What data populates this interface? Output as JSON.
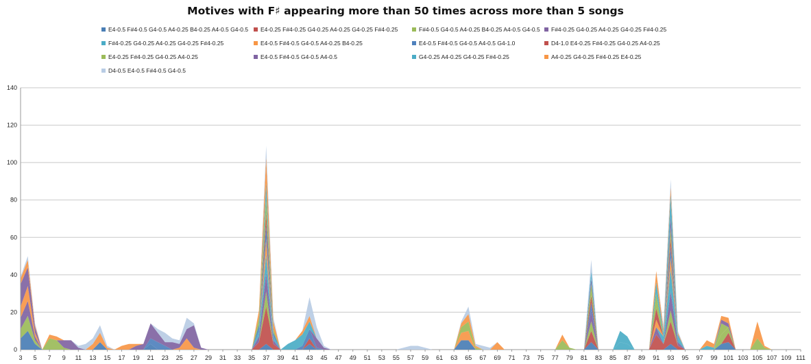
{
  "chart_data": {
    "type": "area",
    "stacked": true,
    "title": "Motives with F♯ appearing more than 50 times across more than 5 songs",
    "grid": true,
    "legend_position": "top",
    "ylim": [
      0,
      140
    ],
    "yticks": [
      0,
      20,
      40,
      60,
      80,
      100,
      120,
      140
    ],
    "x_tick_labels": [
      3,
      5,
      7,
      9,
      11,
      13,
      15,
      17,
      19,
      21,
      23,
      25,
      27,
      29,
      31,
      33,
      35,
      37,
      39,
      41,
      43,
      45,
      47,
      49,
      51,
      53,
      55,
      57,
      59,
      61,
      63,
      65,
      67,
      69,
      71,
      73,
      75,
      77,
      79,
      81,
      83,
      85,
      87,
      89,
      91,
      93,
      95,
      97,
      99,
      101,
      103,
      105,
      107,
      109,
      111
    ],
    "x_range": [
      3,
      111
    ],
    "series": [
      {
        "name": "E4-0.5 F#4-0.5 G4-0.5 A4-0.25 B4-0.25 A4-0.5 G4-0.5",
        "color": "#4a7eb5",
        "points": [
          [
            3,
            6
          ],
          [
            4,
            10
          ],
          [
            5,
            3
          ],
          [
            14,
            4
          ],
          [
            21,
            3
          ],
          [
            37,
            3
          ],
          [
            43,
            3
          ],
          [
            64,
            5
          ],
          [
            65,
            5
          ],
          [
            82,
            4
          ],
          [
            93,
            3
          ],
          [
            100,
            3
          ],
          [
            101,
            4
          ]
        ]
      },
      {
        "name": "E4-0.25 F#4-0.25 G4-0.25 A4-0.25 G4-0.25 F#4-0.25",
        "color": "#c0504d",
        "points": [
          [
            36,
            4
          ],
          [
            37,
            20
          ],
          [
            38,
            3
          ],
          [
            43,
            3
          ],
          [
            82,
            6
          ],
          [
            91,
            8
          ],
          [
            92,
            3
          ],
          [
            93,
            12
          ],
          [
            94,
            2
          ],
          [
            101,
            5
          ]
        ]
      },
      {
        "name": "F#4-0.5 G4-0.5 A4-0.25 B4-0.25 A4-0.5 G4-0.5",
        "color": "#9bbb59",
        "points": [
          [
            3,
            5
          ],
          [
            4,
            8
          ],
          [
            5,
            2
          ],
          [
            37,
            8
          ],
          [
            82,
            5
          ],
          [
            93,
            6
          ],
          [
            100,
            5
          ],
          [
            101,
            3
          ]
        ]
      },
      {
        "name": "F#4-0.25 G4-0.25 A4-0.25 G4-0.25 F#4-0.25",
        "color": "#8064a2",
        "points": [
          [
            3,
            6
          ],
          [
            4,
            8
          ],
          [
            5,
            2
          ],
          [
            36,
            3
          ],
          [
            37,
            10
          ],
          [
            38,
            2
          ],
          [
            82,
            6
          ],
          [
            91,
            4
          ],
          [
            93,
            10
          ],
          [
            94,
            2
          ]
        ]
      },
      {
        "name": "F#4-0.25 G4-0.25 A4-0.25 G4-0.25 F#4-0.25",
        "color": "#4bacc6",
        "points": [
          [
            36,
            3
          ],
          [
            37,
            10
          ],
          [
            38,
            2
          ],
          [
            86,
            4
          ],
          [
            87,
            3
          ],
          [
            92,
            4
          ],
          [
            93,
            12
          ],
          [
            94,
            2
          ]
        ]
      },
      {
        "name": "E4-0.5 F#4-0.5 G4-0.5 A4-0.25 B4-0.25",
        "color": "#f79646",
        "points": [
          [
            3,
            6
          ],
          [
            4,
            8
          ],
          [
            5,
            2
          ],
          [
            13,
            3
          ],
          [
            14,
            5
          ],
          [
            15,
            1
          ],
          [
            25,
            1
          ],
          [
            26,
            6
          ],
          [
            27,
            1
          ],
          [
            37,
            8
          ],
          [
            64,
            4
          ],
          [
            65,
            5
          ],
          [
            91,
            4
          ],
          [
            93,
            6
          ]
        ]
      },
      {
        "name": "E4-0.5 F#4-0.5 G4-0.5 A4-0.5 G4-1.0",
        "color": "#4f81bd",
        "points": [
          [
            21,
            3
          ],
          [
            22,
            4
          ],
          [
            23,
            2
          ],
          [
            36,
            3
          ],
          [
            37,
            8
          ],
          [
            38,
            2
          ],
          [
            42,
            2
          ],
          [
            43,
            5
          ],
          [
            44,
            1
          ],
          [
            82,
            4
          ],
          [
            93,
            6
          ]
        ]
      },
      {
        "name": "D4-1.0 E4-0.25 F#4-0.25 G4-0.25 A4-0.25",
        "color": "#c0504d",
        "points": [
          [
            37,
            6
          ],
          [
            82,
            4
          ],
          [
            91,
            6
          ],
          [
            93,
            5
          ]
        ]
      },
      {
        "name": "E4-0.25 F#4-0.25 G4-0.25 A4-0.25",
        "color": "#9bbb59",
        "points": [
          [
            7,
            6
          ],
          [
            8,
            5
          ],
          [
            9,
            1
          ],
          [
            36,
            4
          ],
          [
            37,
            8
          ],
          [
            38,
            2
          ],
          [
            64,
            3
          ],
          [
            65,
            5
          ],
          [
            66,
            1
          ],
          [
            78,
            5
          ],
          [
            79,
            1
          ],
          [
            82,
            6
          ],
          [
            91,
            8
          ],
          [
            93,
            5
          ],
          [
            100,
            6
          ],
          [
            105,
            6
          ],
          [
            106,
            1
          ]
        ]
      },
      {
        "name": "E4-0.5 F#4-0.5 G4-0.5 A4-0.5",
        "color": "#8064a2",
        "points": [
          [
            2,
            4
          ],
          [
            3,
            12
          ],
          [
            4,
            10
          ],
          [
            5,
            3
          ],
          [
            9,
            4
          ],
          [
            10,
            5
          ],
          [
            11,
            1
          ],
          [
            19,
            2
          ],
          [
            20,
            3
          ],
          [
            21,
            8
          ],
          [
            22,
            5
          ],
          [
            23,
            2
          ],
          [
            24,
            4
          ],
          [
            25,
            2
          ],
          [
            26,
            5
          ],
          [
            27,
            12
          ],
          [
            28,
            1
          ],
          [
            44,
            5
          ],
          [
            45,
            1
          ],
          [
            82,
            3
          ],
          [
            93,
            6
          ],
          [
            100,
            2
          ],
          [
            101,
            2
          ]
        ]
      },
      {
        "name": "G4-0.25 A4-0.25 G4-0.25 F#4-0.25",
        "color": "#4bacc6",
        "points": [
          [
            37,
            8
          ],
          [
            40,
            3
          ],
          [
            41,
            5
          ],
          [
            42,
            6
          ],
          [
            43,
            4
          ],
          [
            82,
            4
          ],
          [
            86,
            6
          ],
          [
            87,
            4
          ],
          [
            91,
            6
          ],
          [
            92,
            2
          ],
          [
            93,
            12
          ],
          [
            94,
            2
          ],
          [
            98,
            2
          ],
          [
            99,
            1
          ]
        ]
      },
      {
        "name": "A4-0.25 G4-0.25 F#4-0.25 E4-0.25",
        "color": "#f79646",
        "points": [
          [
            3,
            3
          ],
          [
            4,
            4
          ],
          [
            5,
            1
          ],
          [
            7,
            2
          ],
          [
            8,
            2
          ],
          [
            17,
            2
          ],
          [
            18,
            3
          ],
          [
            19,
            1
          ],
          [
            36,
            4
          ],
          [
            37,
            14
          ],
          [
            38,
            4
          ],
          [
            42,
            2
          ],
          [
            43,
            3
          ],
          [
            64,
            2
          ],
          [
            65,
            4
          ],
          [
            66,
            1
          ],
          [
            69,
            4
          ],
          [
            78,
            3
          ],
          [
            91,
            6
          ],
          [
            92,
            2
          ],
          [
            93,
            4
          ],
          [
            94,
            1
          ],
          [
            98,
            3
          ],
          [
            99,
            2
          ],
          [
            100,
            2
          ],
          [
            101,
            3
          ],
          [
            105,
            9
          ],
          [
            106,
            1
          ]
        ]
      },
      {
        "name": "D4-0.5 E4-0.5 F#4-0.5 G4-0.5",
        "color": "#b8cce4",
        "points": [
          [
            3,
            1
          ],
          [
            4,
            2
          ],
          [
            5,
            1
          ],
          [
            11,
            1
          ],
          [
            12,
            3
          ],
          [
            13,
            3
          ],
          [
            14,
            4
          ],
          [
            15,
            1
          ],
          [
            22,
            2
          ],
          [
            23,
            5
          ],
          [
            24,
            2
          ],
          [
            25,
            2
          ],
          [
            26,
            6
          ],
          [
            27,
            1
          ],
          [
            37,
            6
          ],
          [
            38,
            2
          ],
          [
            43,
            10
          ],
          [
            44,
            6
          ],
          [
            45,
            1
          ],
          [
            56,
            1
          ],
          [
            57,
            2
          ],
          [
            58,
            2
          ],
          [
            59,
            1
          ],
          [
            64,
            1
          ],
          [
            65,
            4
          ],
          [
            66,
            1
          ],
          [
            67,
            2
          ],
          [
            68,
            1
          ],
          [
            82,
            6
          ],
          [
            92,
            2
          ],
          [
            93,
            4
          ],
          [
            94,
            1
          ]
        ]
      }
    ]
  }
}
